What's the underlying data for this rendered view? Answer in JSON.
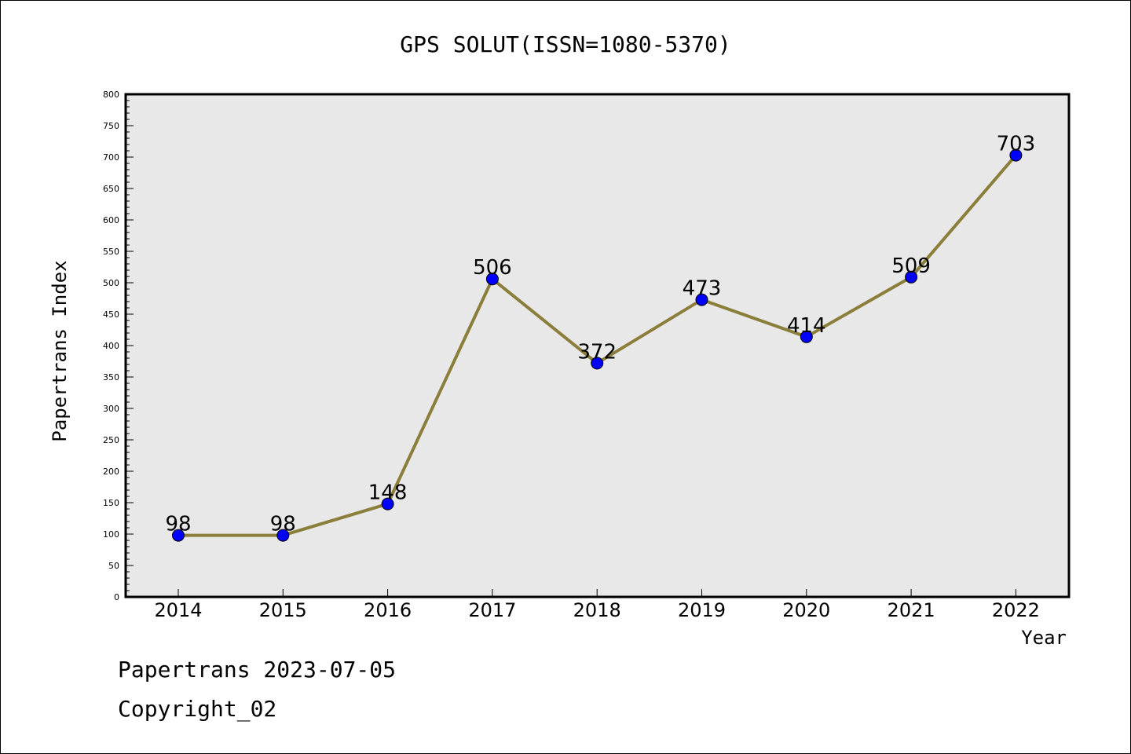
{
  "chart_data": {
    "type": "line",
    "title": "GPS SOLUT(ISSN=1080-5370)",
    "xlabel": "Year",
    "ylabel": "Papertrans Index",
    "categories": [
      "2014",
      "2015",
      "2016",
      "2017",
      "2018",
      "2019",
      "2020",
      "2021",
      "2022"
    ],
    "values": [
      98,
      98,
      148,
      506,
      372,
      473,
      414,
      509,
      703
    ],
    "ylim": [
      0,
      800
    ],
    "yticks": [
      0,
      50,
      100,
      150,
      200,
      250,
      300,
      350,
      400,
      450,
      500,
      550,
      600,
      650,
      700,
      750,
      800
    ],
    "grid": false,
    "legend": "none",
    "colors": {
      "line": "#8b7d3a",
      "marker": "#0000ff",
      "plot_background": "#e8e8e8"
    }
  },
  "footer": {
    "line1": "Papertrans 2023-07-05",
    "line2": "Copyright_02"
  }
}
